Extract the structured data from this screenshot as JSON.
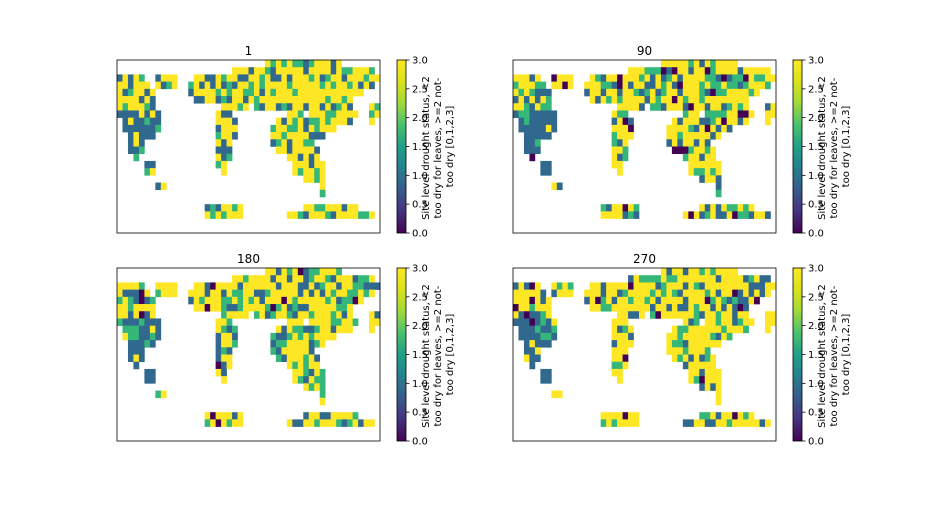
{
  "chart_data": [
    {
      "type": "heatmap",
      "title": "1",
      "xlabel": "",
      "ylabel": "",
      "colorbar": {
        "label_lines": [
          "Site level drought status, <2",
          "too dry for leaves, >=2 not-",
          "too dry [0,1,2,3]"
        ],
        "range": [
          0.0,
          3.0
        ],
        "ticks": [
          "0.0",
          "0.5",
          "1.0",
          "1.5",
          "2.0",
          "2.5",
          "3.0"
        ],
        "colormap": "viridis"
      },
      "grid_shape": [
        24,
        48
      ],
      "value_counts_approx": {
        "3": 60,
        "2": 20,
        "1": 20,
        "0": 0
      }
    },
    {
      "type": "heatmap",
      "title": "90",
      "xlabel": "",
      "ylabel": "",
      "colorbar": {
        "label_lines": [
          "Site level drought status, <2",
          "too dry for leaves, >=2 not-",
          "too dry [0,1,2,3]"
        ],
        "range": [
          0.0,
          3.0
        ],
        "ticks": [
          "0.0",
          "0.5",
          "1.0",
          "1.5",
          "2.0",
          "2.5",
          "3.0"
        ],
        "colormap": "viridis"
      },
      "grid_shape": [
        24,
        48
      ],
      "value_counts_approx": {
        "3": 55,
        "2": 20,
        "1": 20,
        "0": 5
      }
    },
    {
      "type": "heatmap",
      "title": "180",
      "xlabel": "",
      "ylabel": "",
      "colorbar": {
        "label_lines": [
          "Site level drought status, <2",
          "too dry for leaves, >=2 not-",
          "too dry [0,1,2,3]"
        ],
        "range": [
          0.0,
          3.0
        ],
        "ticks": [
          "0.0",
          "0.5",
          "1.0",
          "1.5",
          "2.0",
          "2.5",
          "3.0"
        ],
        "colormap": "viridis"
      },
      "grid_shape": [
        24,
        48
      ],
      "value_counts_approx": {
        "3": 58,
        "2": 18,
        "1": 22,
        "0": 2
      }
    },
    {
      "type": "heatmap",
      "title": "270",
      "xlabel": "",
      "ylabel": "",
      "colorbar": {
        "label_lines": [
          "Site level drought status, <2",
          "too dry for leaves, >=2 not-",
          "too dry [0,1,2,3]"
        ],
        "range": [
          0.0,
          3.0
        ],
        "ticks": [
          "0.0",
          "0.5",
          "1.0",
          "1.5",
          "2.0",
          "2.5",
          "3.0"
        ],
        "colormap": "viridis"
      },
      "grid_shape": [
        24,
        48
      ],
      "value_counts_approx": {
        "3": 68,
        "2": 14,
        "1": 14,
        "0": 4
      }
    }
  ],
  "colors": {
    "v0": "#440154",
    "v1": "#31688e",
    "v2": "#35b779",
    "v3": "#fde725",
    "axis": "#000000",
    "background": "#ffffff"
  }
}
